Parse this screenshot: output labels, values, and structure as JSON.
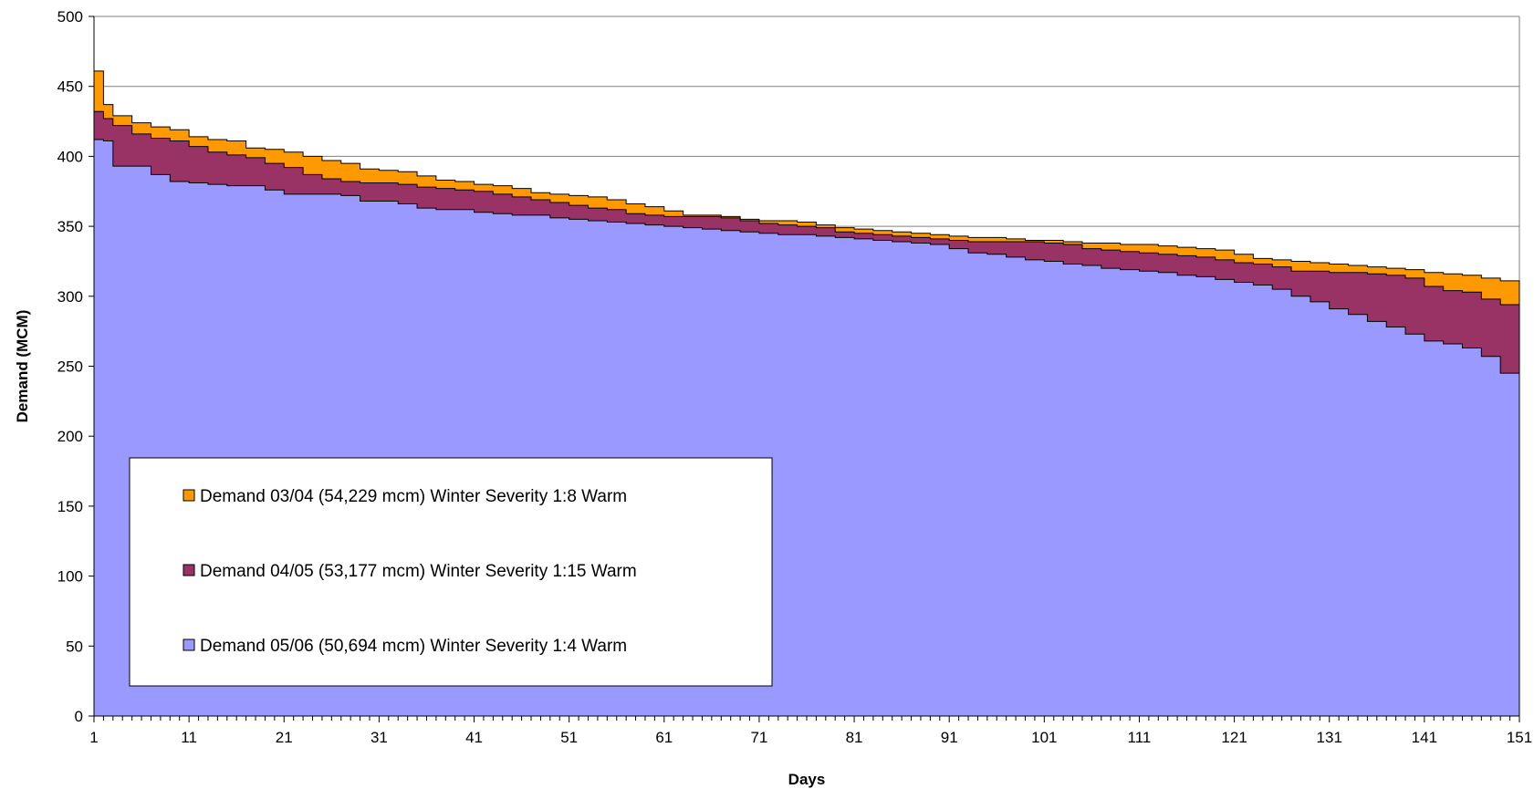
{
  "chart_data": {
    "type": "area",
    "stacked": true,
    "title": "",
    "xlabel": "Days",
    "ylabel": "Demand (MCM)",
    "xlim": [
      1,
      151
    ],
    "ylim": [
      0,
      500
    ],
    "y_ticks": [
      0,
      50,
      100,
      150,
      200,
      250,
      300,
      350,
      400,
      450,
      500
    ],
    "x_tick_labels": [
      "1",
      "11",
      "21",
      "31",
      "41",
      "51",
      "61",
      "71",
      "81",
      "91",
      "101",
      "111",
      "121",
      "131",
      "141",
      "151"
    ],
    "grid": "horizontal",
    "legend_position": "bottom-left",
    "x_days": [
      1,
      2,
      3,
      5,
      7,
      9,
      11,
      13,
      15,
      17,
      19,
      21,
      23,
      25,
      27,
      29,
      31,
      33,
      35,
      37,
      39,
      41,
      43,
      45,
      47,
      49,
      51,
      53,
      55,
      57,
      59,
      61,
      63,
      65,
      67,
      69,
      71,
      73,
      75,
      77,
      79,
      81,
      83,
      85,
      87,
      89,
      91,
      93,
      95,
      97,
      99,
      101,
      103,
      105,
      107,
      109,
      111,
      113,
      115,
      117,
      119,
      121,
      123,
      125,
      127,
      129,
      131,
      133,
      135,
      137,
      139,
      141,
      143,
      145,
      147,
      149,
      151
    ],
    "series": [
      {
        "name": "Demand 05/06 (50,694 mcm) Winter Severity 1:4 Warm",
        "color": "#9999ff",
        "values": [
          412,
          411,
          393,
          393,
          387,
          382,
          381,
          380,
          379,
          379,
          376,
          373,
          373,
          373,
          372,
          368,
          368,
          366,
          363,
          362,
          362,
          360,
          359,
          358,
          358,
          356,
          355,
          354,
          353,
          352,
          351,
          350,
          349,
          348,
          347,
          346,
          345,
          344,
          344,
          343,
          342,
          341,
          340,
          339,
          338,
          337,
          334,
          331,
          330,
          328,
          326,
          325,
          323,
          322,
          320,
          319,
          318,
          317,
          315,
          314,
          312,
          310,
          308,
          305,
          300,
          296,
          291,
          287,
          282,
          278,
          273,
          268,
          266,
          263,
          257,
          245,
          235
        ]
      },
      {
        "name": "Demand 04/05 (53,177 mcm) Winter Severity 1:15 Warm",
        "color": "#993366",
        "values": [
          432,
          427,
          422,
          416,
          413,
          411,
          407,
          403,
          401,
          399,
          395,
          392,
          387,
          384,
          382,
          381,
          381,
          380,
          378,
          377,
          376,
          375,
          373,
          371,
          369,
          367,
          365,
          363,
          362,
          359,
          358,
          357,
          357,
          357,
          356,
          354,
          352,
          351,
          350,
          349,
          346,
          345,
          344,
          343,
          342,
          341,
          340,
          339,
          339,
          339,
          339,
          338,
          337,
          334,
          333,
          332,
          331,
          330,
          329,
          328,
          326,
          324,
          323,
          321,
          318,
          318,
          317,
          317,
          316,
          315,
          313,
          307,
          304,
          303,
          298,
          294,
          283
        ]
      },
      {
        "name": "Demand 03/04 (54,229 mcm) Winter Severity 1:8 Warm",
        "color": "#ff9900",
        "values": [
          461,
          437,
          429,
          424,
          421,
          419,
          414,
          412,
          411,
          406,
          405,
          403,
          400,
          397,
          395,
          391,
          390,
          389,
          386,
          383,
          382,
          380,
          379,
          377,
          374,
          373,
          372,
          371,
          369,
          366,
          364,
          361,
          358,
          358,
          357,
          355,
          354,
          354,
          353,
          351,
          349,
          348,
          347,
          346,
          345,
          344,
          343,
          342,
          342,
          341,
          340,
          340,
          339,
          338,
          338,
          337,
          337,
          336,
          335,
          334,
          333,
          330,
          327,
          326,
          325,
          324,
          323,
          322,
          321,
          320,
          319,
          317,
          316,
          315,
          313,
          311,
          307
        ]
      }
    ]
  }
}
